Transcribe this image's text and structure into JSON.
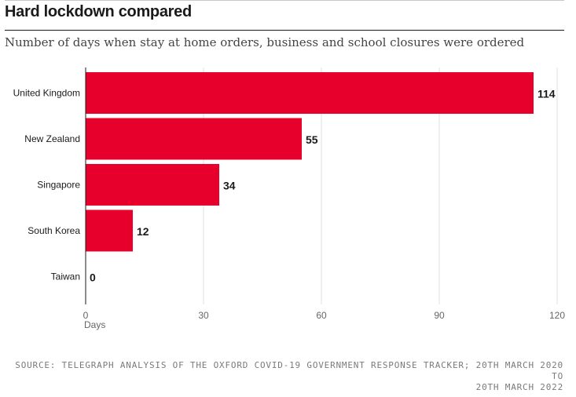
{
  "header": {
    "title": "Hard lockdown compared",
    "subtitle": "Number of days when stay at home orders, business and school closures were ordered"
  },
  "footer": {
    "source_line1": "SOURCE: TELEGRAPH ANALYSIS OF THE OXFORD COVID-19 GOVERNMENT RESPONSE TRACKER; 20TH MARCH 2020 TO",
    "source_line2": "20TH MARCH 2022"
  },
  "colors": {
    "bar": "#e8002d",
    "grid": "#e2e2e2",
    "text": "#1a1a1a"
  },
  "chart_data": {
    "type": "bar",
    "orientation": "horizontal",
    "title": "Hard lockdown compared",
    "subtitle": "Number of days when stay at home orders, business and school closures were ordered",
    "categories": [
      "United Kingdom",
      "New Zealand",
      "Singapore",
      "South Korea",
      "Taiwan"
    ],
    "values": [
      114,
      55,
      34,
      12,
      0
    ],
    "xlabel": "Days",
    "ylabel": "",
    "xlim": [
      0,
      120
    ],
    "xticks": [
      0,
      30,
      60,
      90,
      120
    ],
    "grid": true
  }
}
